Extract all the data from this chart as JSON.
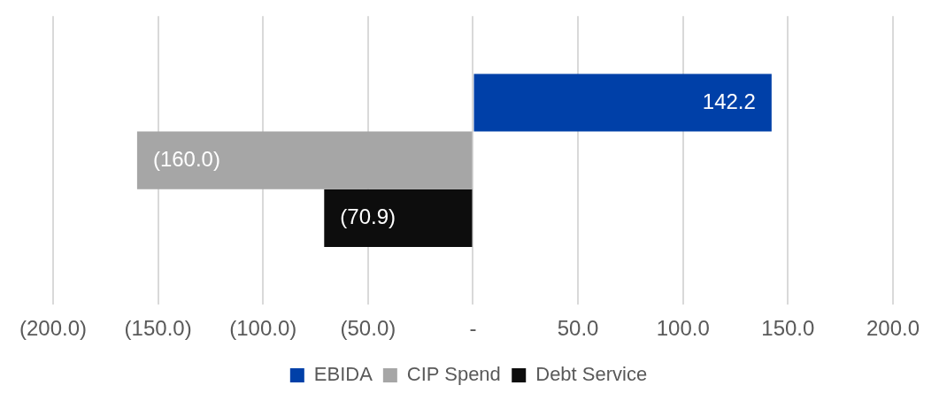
{
  "chart_data": {
    "type": "bar",
    "orientation": "horizontal",
    "categories": [
      null
    ],
    "series": [
      {
        "name": "EBIDA",
        "color": "#0040a8",
        "values": [
          142.2
        ],
        "value_labels": [
          "142.2"
        ]
      },
      {
        "name": "CIP Spend",
        "color": "#a6a6a6",
        "values": [
          -160.0
        ],
        "value_labels": [
          "(160.0)"
        ]
      },
      {
        "name": "Debt Service",
        "color": "#0d0d0d",
        "values": [
          -70.9
        ],
        "value_labels": [
          "(70.9)"
        ]
      }
    ],
    "xlim": [
      -200,
      200
    ],
    "xticks": [
      {
        "value": -200,
        "label": "(200.0)"
      },
      {
        "value": -150,
        "label": "(150.0)"
      },
      {
        "value": -100,
        "label": "(100.0)"
      },
      {
        "value": -50,
        "label": "(50.0)"
      },
      {
        "value": 0,
        "label": "-"
      },
      {
        "value": 50,
        "label": "50.0"
      },
      {
        "value": 100,
        "label": "100.0"
      },
      {
        "value": 150,
        "label": "150.0"
      },
      {
        "value": 200,
        "label": "200.0"
      }
    ],
    "grid": "x",
    "legend": "bottom"
  }
}
